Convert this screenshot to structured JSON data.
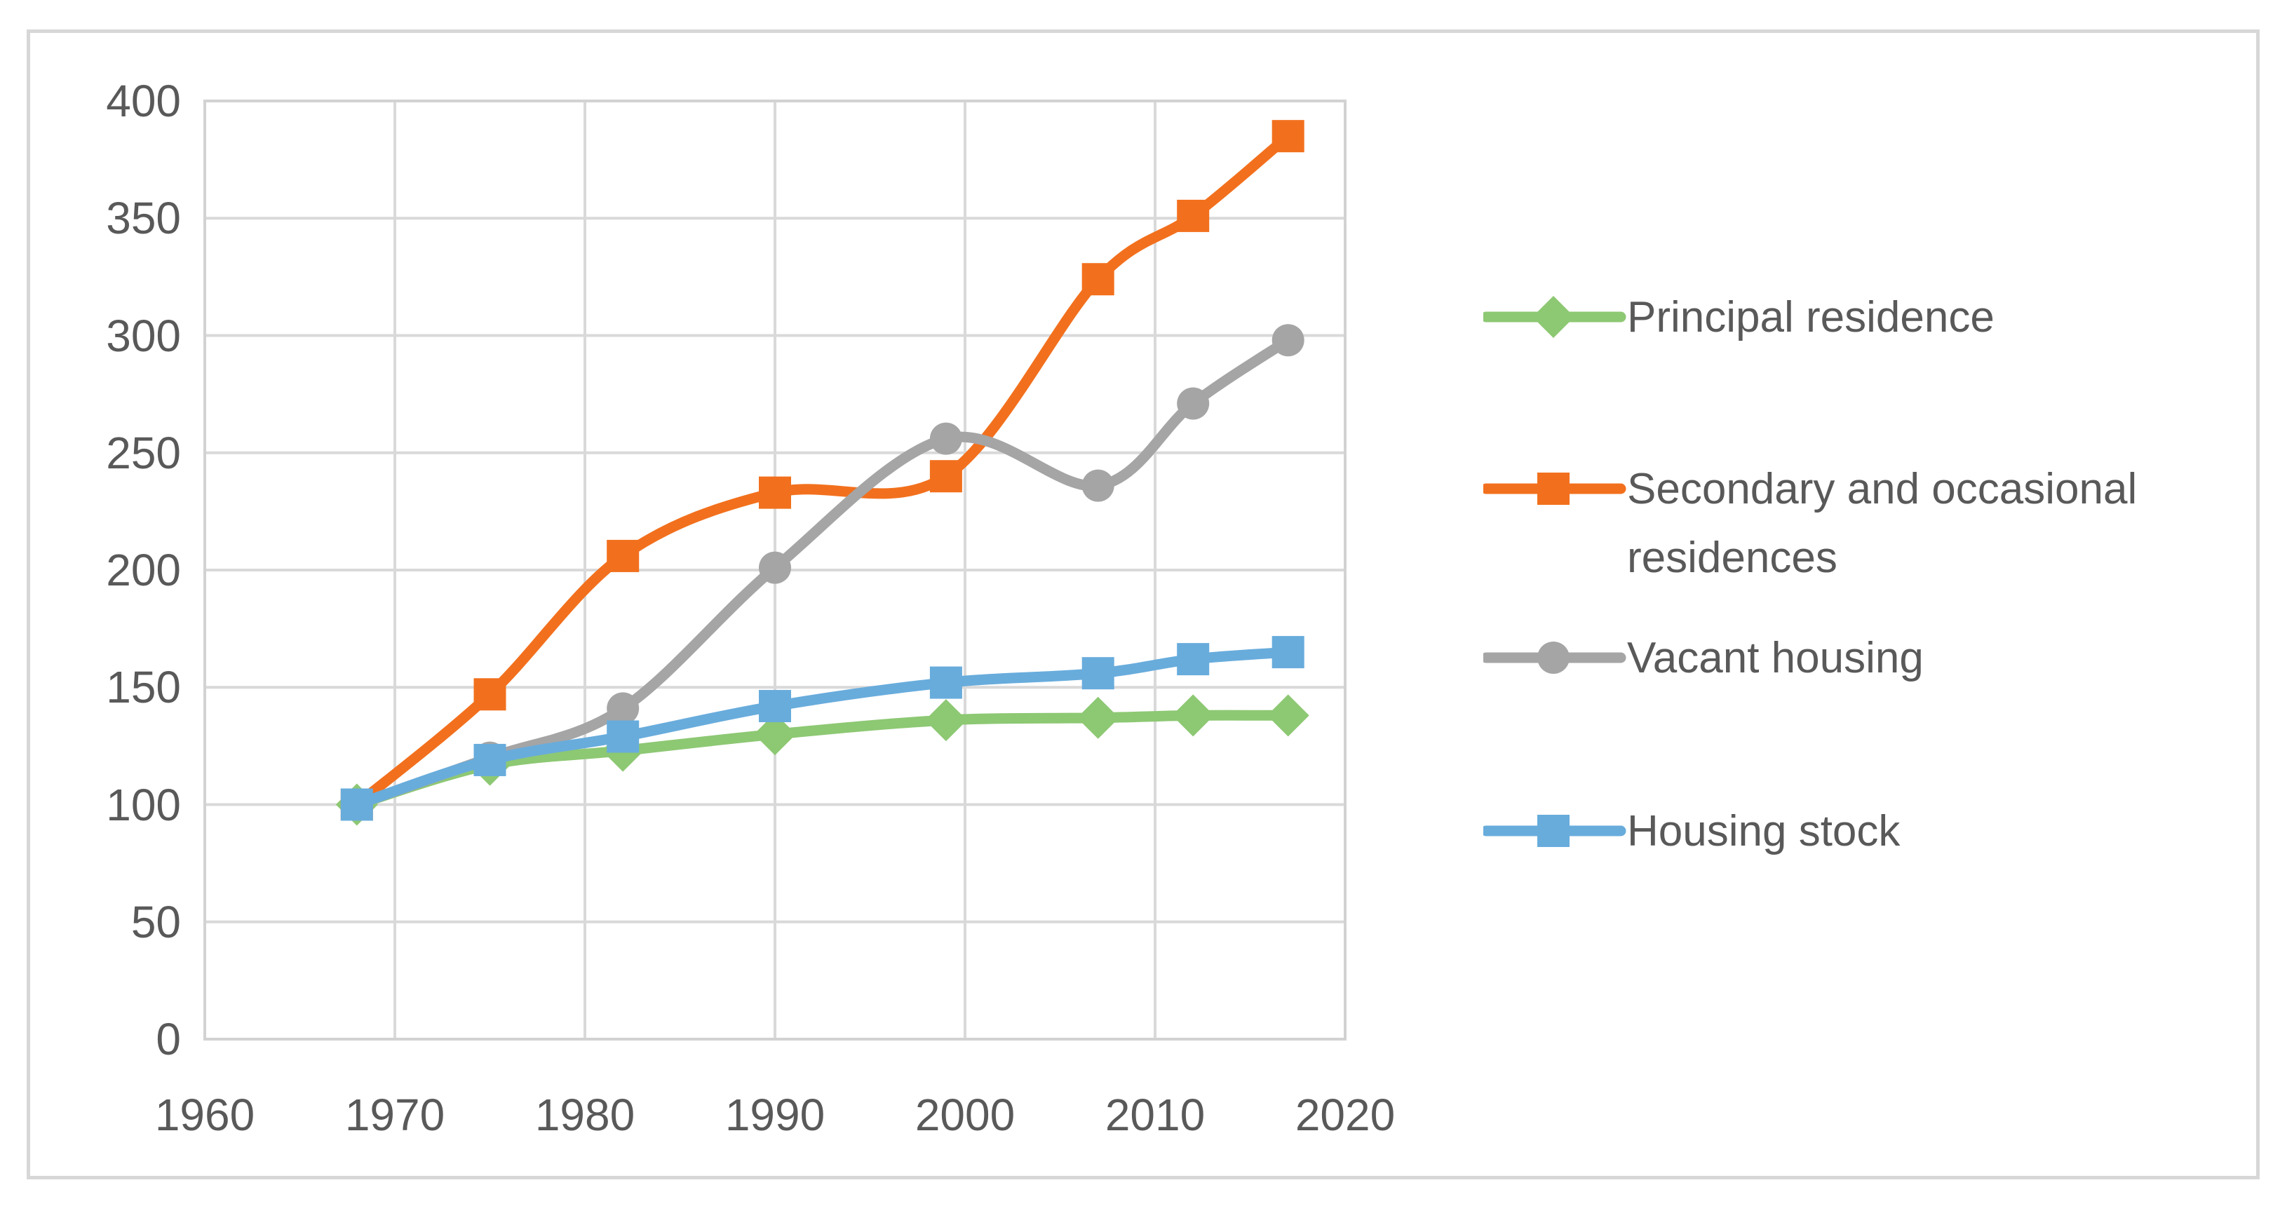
{
  "figure": {
    "background": "#ffffff",
    "border_color": "#d7d7d7",
    "gridline_color": "#d9d9d9",
    "axis_label_color": "#595959"
  },
  "chart_data": {
    "type": "line",
    "smooth": true,
    "grid": true,
    "legend_position": "right",
    "xlim": [
      1960,
      2020
    ],
    "ylim": [
      0,
      400
    ],
    "x": [
      1968,
      1975,
      1982,
      1990,
      1999,
      2007,
      2012,
      2017
    ],
    "series": [
      {
        "name": "Principal residence",
        "color": "#8dc873",
        "marker": "diamond",
        "values": [
          100,
          117,
          123,
          130,
          136,
          137,
          138,
          138
        ]
      },
      {
        "name": "Secondary and occasional residences",
        "color": "#f2701d",
        "marker": "square",
        "values": [
          100,
          147,
          206,
          233,
          240,
          324,
          351,
          385
        ]
      },
      {
        "name": "Vacant housing",
        "color": "#a5a5a5",
        "marker": "circle",
        "values": [
          100,
          120,
          141,
          201,
          256,
          236,
          271,
          298
        ]
      },
      {
        "name": "Housing stock",
        "color": "#68acdc",
        "marker": "square",
        "values": [
          100,
          119,
          129,
          142,
          152,
          156,
          162,
          165
        ]
      }
    ],
    "title": "",
    "xlabel": "",
    "ylabel": ""
  },
  "axes": {
    "y_tick_labels": [
      "400",
      "350",
      "300",
      "250",
      "200",
      "150",
      "100",
      "50",
      "0"
    ],
    "x_tick_labels": [
      "1960",
      "1970",
      "1980",
      "1990",
      "2000",
      "2010",
      "2020"
    ]
  },
  "legend": {
    "items": [
      {
        "label": "Principal residence"
      },
      {
        "label": "Secondary and occasional residences"
      },
      {
        "label": "Vacant housing"
      },
      {
        "label": "Housing stock"
      }
    ]
  }
}
